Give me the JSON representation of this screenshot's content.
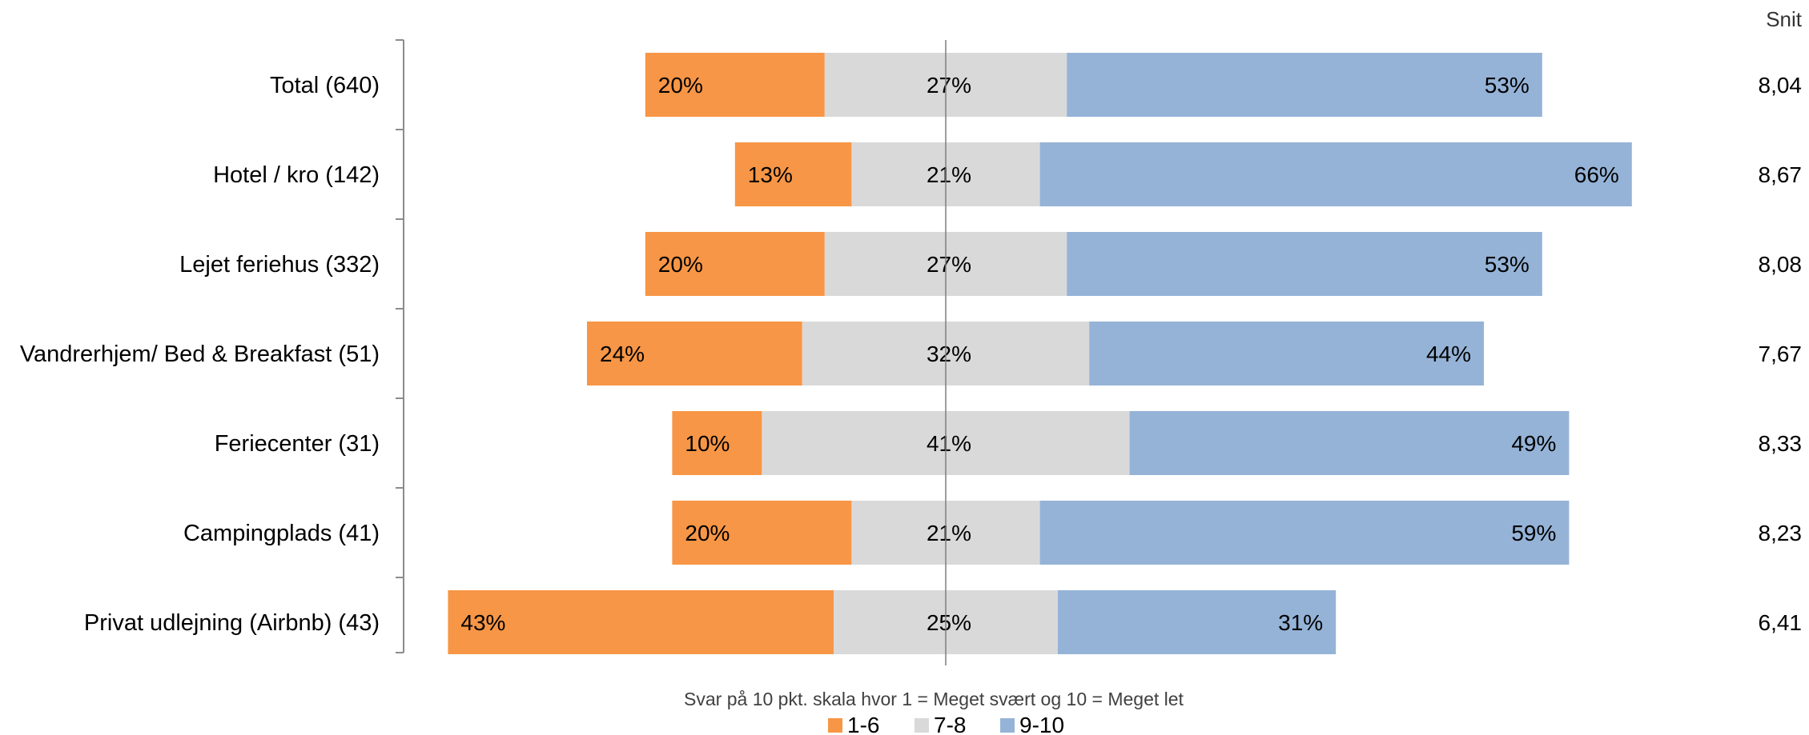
{
  "chart_data": {
    "type": "bar",
    "stacked": true,
    "orientation": "horizontal",
    "diverging": true,
    "categories": [
      "Total (640)",
      "Hotel / kro (142)",
      "Lejet feriehus (332)",
      "Vandrerhjem/ Bed & Breakfast (51)",
      "Feriecenter (31)",
      "Campingplads (41)",
      "Privat udlejning (Airbnb) (43)"
    ],
    "series": [
      {
        "name": "1-6",
        "color": "#f79646",
        "values": [
          20,
          13,
          20,
          24,
          10,
          20,
          43
        ]
      },
      {
        "name": "7-8",
        "color": "#d9d9d9",
        "values": [
          27,
          21,
          27,
          32,
          41,
          21,
          25
        ]
      },
      {
        "name": "9-10",
        "color": "#95b3d7",
        "values": [
          53,
          66,
          53,
          44,
          49,
          59,
          31
        ]
      }
    ],
    "value_suffix": "%",
    "snit_header": "Snit",
    "snit": [
      "8,04",
      "8,67",
      "8,08",
      "7,67",
      "8,33",
      "8,23",
      "6,41"
    ],
    "xlabel": "Svar på 10 pkt. skala hvor 1 = Meget svært og 10 = Meget let",
    "legend_position": "bottom"
  }
}
